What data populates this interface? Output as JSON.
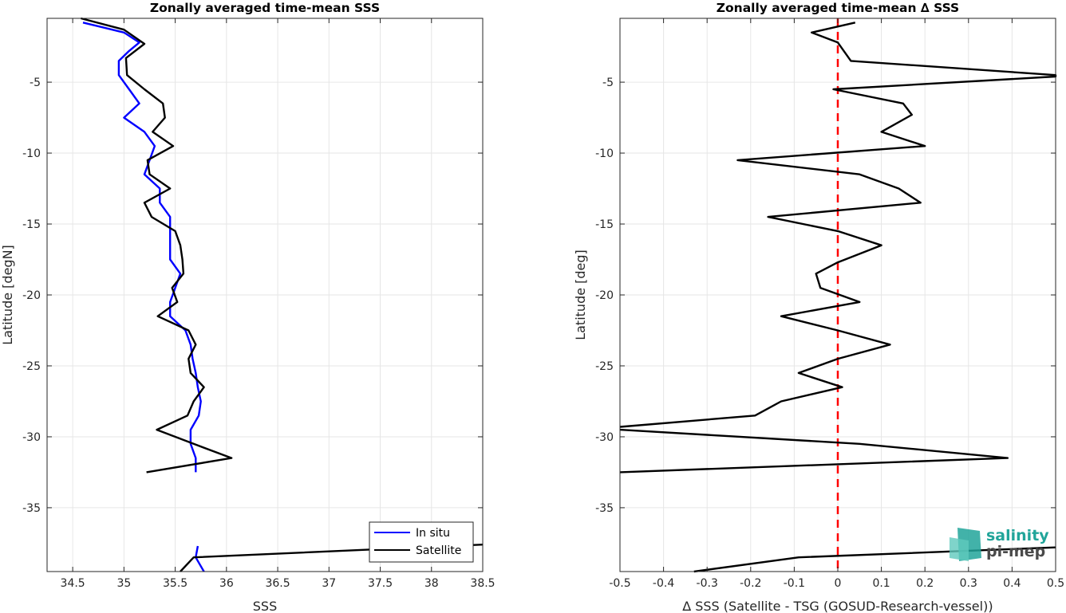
{
  "chart_data": [
    {
      "type": "line",
      "title": "Zonally averaged time-mean SSS",
      "xlabel": "SSS",
      "ylabel": "Latitude [degN]",
      "xlim": [
        34.25,
        38.5
      ],
      "ylim": [
        -39.5,
        -0.5
      ],
      "xticks": [
        "34.5",
        "35",
        "35.5",
        "36",
        "36.5",
        "37",
        "37.5",
        "38",
        "38.5"
      ],
      "yticks": [
        "-5",
        "-10",
        "-15",
        "-20",
        "-25",
        "-30",
        "-35"
      ],
      "grid": true,
      "legend": "bottom-right",
      "series": [
        {
          "name": "In situ",
          "color": "#0000ff",
          "segments": [
            [
              [
                34.6,
                -0.8
              ],
              [
                35.0,
                -1.5
              ],
              [
                35.15,
                -2.2
              ],
              [
                35.05,
                -2.8
              ],
              [
                34.95,
                -3.5
              ],
              [
                34.95,
                -4.5
              ],
              [
                35.05,
                -5.5
              ],
              [
                35.15,
                -6.5
              ],
              [
                35.0,
                -7.5
              ],
              [
                35.2,
                -8.5
              ],
              [
                35.3,
                -9.5
              ],
              [
                35.25,
                -10.5
              ],
              [
                35.2,
                -11.5
              ],
              [
                35.35,
                -12.5
              ],
              [
                35.35,
                -13.5
              ],
              [
                35.45,
                -14.5
              ],
              [
                35.45,
                -15.5
              ],
              [
                35.45,
                -16.5
              ],
              [
                35.45,
                -17.5
              ],
              [
                35.55,
                -18.5
              ],
              [
                35.5,
                -19.5
              ],
              [
                35.45,
                -20.5
              ],
              [
                35.45,
                -21.5
              ],
              [
                35.6,
                -22.5
              ],
              [
                35.65,
                -23.5
              ],
              [
                35.67,
                -24.5
              ],
              [
                35.7,
                -25.5
              ],
              [
                35.72,
                -26.5
              ],
              [
                35.75,
                -27.5
              ],
              [
                35.73,
                -28.5
              ],
              [
                35.65,
                -29.5
              ],
              [
                35.65,
                -30.5
              ],
              [
                35.7,
                -31.5
              ],
              [
                35.7,
                -32.5
              ]
            ],
            [
              [
                35.72,
                -37.7
              ],
              [
                35.7,
                -38.5
              ],
              [
                35.78,
                -39.5
              ]
            ]
          ]
        },
        {
          "name": "Satellite",
          "color": "#000000",
          "segments": [
            [
              [
                34.58,
                -0.5
              ],
              [
                35.0,
                -1.3
              ],
              [
                35.2,
                -2.3
              ],
              [
                35.02,
                -3.3
              ],
              [
                35.03,
                -4.5
              ],
              [
                35.2,
                -5.5
              ],
              [
                35.38,
                -6.5
              ],
              [
                35.4,
                -7.5
              ],
              [
                35.28,
                -8.5
              ],
              [
                35.48,
                -9.5
              ],
              [
                35.23,
                -10.5
              ],
              [
                35.25,
                -11.5
              ],
              [
                35.45,
                -12.5
              ],
              [
                35.2,
                -13.5
              ],
              [
                35.27,
                -14.5
              ],
              [
                35.5,
                -15.5
              ],
              [
                35.55,
                -16.5
              ],
              [
                35.57,
                -17.5
              ],
              [
                35.58,
                -18.5
              ],
              [
                35.47,
                -19.5
              ],
              [
                35.52,
                -20.5
              ],
              [
                35.33,
                -21.5
              ],
              [
                35.63,
                -22.5
              ],
              [
                35.7,
                -23.5
              ],
              [
                35.63,
                -24.5
              ],
              [
                35.65,
                -25.5
              ],
              [
                35.78,
                -26.5
              ],
              [
                35.68,
                -27.5
              ],
              [
                35.62,
                -28.5
              ],
              [
                35.32,
                -29.5
              ],
              [
                35.68,
                -30.5
              ],
              [
                36.05,
                -31.5
              ],
              [
                35.22,
                -32.5
              ]
            ],
            [
              [
                38.5,
                -37.6
              ],
              [
                35.68,
                -38.5
              ],
              [
                35.55,
                -39.5
              ]
            ]
          ]
        }
      ]
    },
    {
      "type": "line",
      "title": "Zonally averaged time-mean ∆ SSS",
      "xlabel": "∆ SSS (Satellite - TSG (GOSUD-Research-vessel))",
      "ylabel": "Latitude [deg]",
      "xlim": [
        -0.5,
        0.5
      ],
      "ylim": [
        -39.5,
        -0.5
      ],
      "xticks": [
        "-0.5",
        "-0.4",
        "-0.3",
        "-0.2",
        "-0.1",
        "0",
        "0.1",
        "0.2",
        "0.3",
        "0.4",
        "0.5"
      ],
      "yticks": [
        "-5",
        "-10",
        "-15",
        "-20",
        "-25",
        "-30",
        "-35"
      ],
      "grid": true,
      "reference_line": {
        "x": 0,
        "style": "dashed",
        "color": "#ff0000"
      },
      "series": [
        {
          "color": "#000000",
          "segments": [
            [
              [
                0.04,
                -0.8
              ],
              [
                -0.06,
                -1.5
              ],
              [
                0.0,
                -2.2
              ],
              [
                0.03,
                -3.5
              ],
              [
                0.5,
                -4.5
              ],
              [
                0.5,
                -4.6
              ],
              [
                -0.01,
                -5.5
              ],
              [
                0.15,
                -6.5
              ],
              [
                0.17,
                -7.3
              ],
              [
                0.1,
                -8.5
              ],
              [
                0.2,
                -9.5
              ],
              [
                -0.23,
                -10.5
              ],
              [
                0.05,
                -11.5
              ],
              [
                0.14,
                -12.5
              ],
              [
                0.19,
                -13.5
              ],
              [
                -0.16,
                -14.5
              ],
              [
                0.0,
                -15.5
              ],
              [
                0.1,
                -16.5
              ],
              [
                0.0,
                -17.7
              ],
              [
                -0.05,
                -18.5
              ],
              [
                -0.04,
                -19.5
              ],
              [
                0.05,
                -20.5
              ],
              [
                -0.13,
                -21.5
              ],
              [
                0.0,
                -22.5
              ],
              [
                0.12,
                -23.5
              ],
              [
                0.0,
                -24.5
              ],
              [
                -0.09,
                -25.5
              ],
              [
                0.01,
                -26.5
              ],
              [
                -0.13,
                -27.5
              ],
              [
                -0.19,
                -28.5
              ],
              [
                -0.5,
                -29.3
              ]
            ],
            [
              [
                -0.5,
                -29.5
              ],
              [
                0.05,
                -30.5
              ],
              [
                0.39,
                -31.5
              ],
              [
                -0.5,
                -32.5
              ]
            ],
            [
              [
                0.5,
                -37.8
              ],
              [
                -0.09,
                -38.5
              ],
              [
                -0.33,
                -39.5
              ]
            ]
          ]
        }
      ]
    }
  ],
  "legend": {
    "in_situ": "In situ",
    "satellite": "Satellite"
  },
  "logo": {
    "line1": "salinity",
    "line2": "pi-mep"
  }
}
